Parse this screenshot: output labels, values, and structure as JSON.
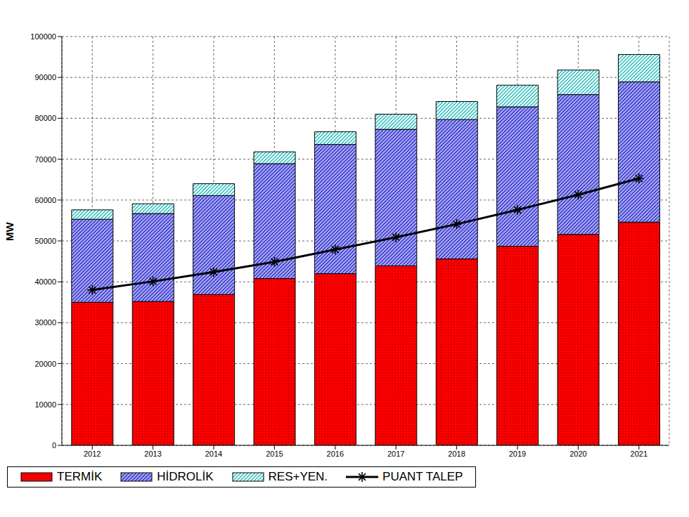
{
  "chart_data": {
    "type": "bar",
    "y_label": "MW",
    "categories": [
      "2012",
      "2013",
      "2014",
      "2015",
      "2016",
      "2017",
      "2018",
      "2019",
      "2020",
      "2021"
    ],
    "series": [
      {
        "name": "TERMİK",
        "color": "#ff0000",
        "type": "bar",
        "values": [
          35000,
          35200,
          36900,
          40800,
          42000,
          43900,
          45600,
          48700,
          51600,
          54600
        ]
      },
      {
        "name": "HİDROLİK",
        "color": "#9999ff",
        "type": "bar",
        "values": [
          20300,
          21500,
          24200,
          28100,
          31600,
          33400,
          34100,
          34100,
          34200,
          34300
        ]
      },
      {
        "name": "RES+YEN.",
        "color": "#ccffff",
        "type": "bar",
        "values": [
          2300,
          2400,
          2900,
          2900,
          3100,
          3700,
          4400,
          5300,
          6000,
          6700
        ]
      },
      {
        "name": "PUANT TALEP",
        "color": "#000000",
        "type": "line",
        "marker": "star",
        "values": [
          38000,
          40100,
          42400,
          44900,
          47900,
          50900,
          54100,
          57600,
          61300,
          65300
        ]
      }
    ],
    "ylim": [
      0,
      100000
    ],
    "yticks": [
      0,
      10000,
      20000,
      30000,
      40000,
      50000,
      60000,
      70000,
      80000,
      90000,
      100000
    ],
    "stacked": true,
    "grid": true,
    "legend": "bottom"
  }
}
